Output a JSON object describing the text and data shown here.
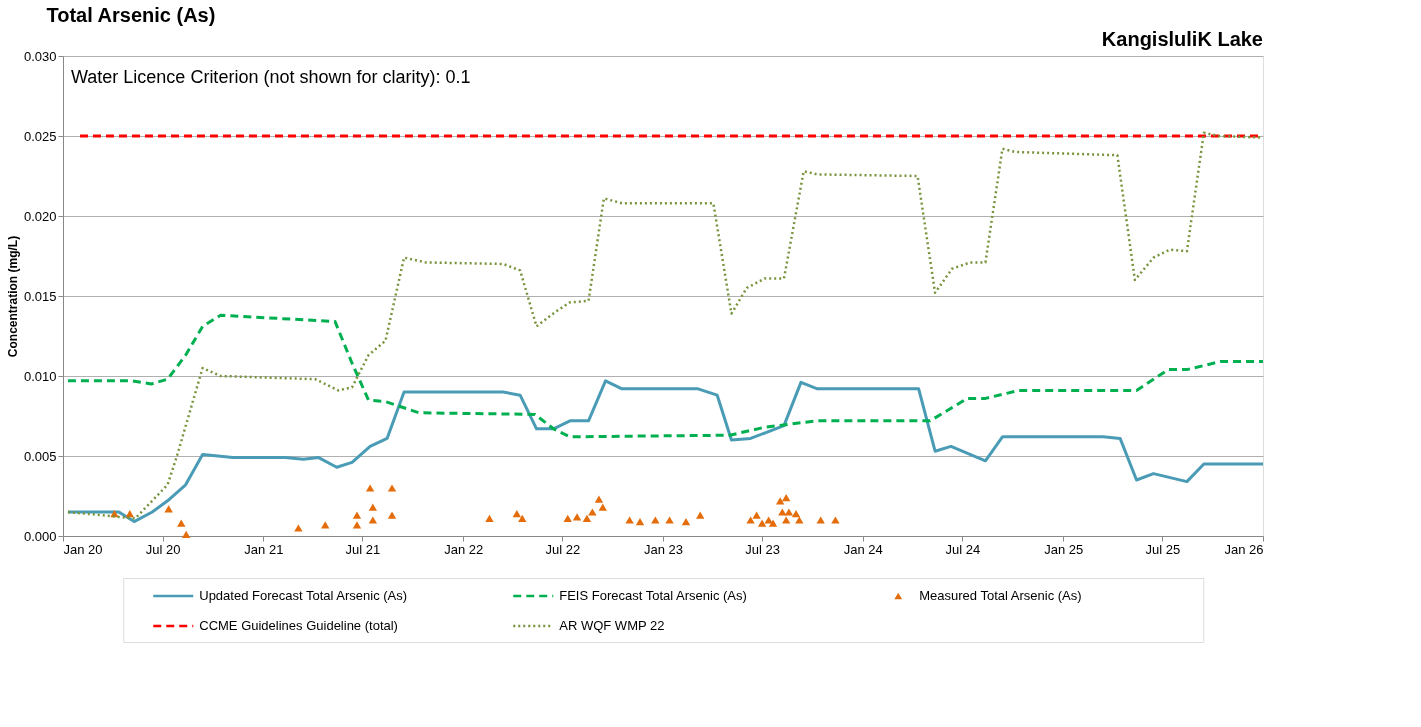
{
  "chart_data": {
    "type": "line",
    "title": "Total Arsenic (As)",
    "ylabel": "Concentration (mg/L)",
    "annotations": [
      "KangisluliK Lake",
      "Water Licence Criterion (not shown for clarity): 0.1"
    ],
    "xlim": [
      "2020-01-01",
      "2026-01-01"
    ],
    "xticks": [
      {
        "value": "2020-01-01",
        "label": "Jan 20"
      },
      {
        "value": "2020-07-01",
        "label": "Jul 20"
      },
      {
        "value": "2021-01-01",
        "label": "Jan 21"
      },
      {
        "value": "2021-07-01",
        "label": "Jul 21"
      },
      {
        "value": "2022-01-01",
        "label": "Jan 22"
      },
      {
        "value": "2022-07-01",
        "label": "Jul 22"
      },
      {
        "value": "2023-01-01",
        "label": "Jan 23"
      },
      {
        "value": "2023-07-01",
        "label": "Jul 23"
      },
      {
        "value": "2024-01-01",
        "label": "Jan 24"
      },
      {
        "value": "2024-07-01",
        "label": "Jul 24"
      },
      {
        "value": "2025-01-01",
        "label": "Jan 25"
      },
      {
        "value": "2025-07-01",
        "label": "Jul 25"
      },
      {
        "value": "2026-01-01",
        "label": "Jan 26"
      }
    ],
    "ylim": [
      0,
      0.03
    ],
    "yticks": [
      {
        "value": 0,
        "label": "0.000"
      },
      {
        "value": 0.005,
        "label": "0.005"
      },
      {
        "value": 0.01,
        "label": "0.010"
      },
      {
        "value": 0.015,
        "label": "0.015"
      },
      {
        "value": 0.02,
        "label": "0.020"
      },
      {
        "value": 0.025,
        "label": "0.025"
      },
      {
        "value": 0.03,
        "label": "0.030"
      }
    ],
    "grid": "y",
    "legend": "bottom",
    "series": [
      {
        "name": "Updated Forecast Total Arsenic (As)",
        "type": "line",
        "line_style": "solid",
        "color": "#4a9bb5",
        "x": [
          "2020-01-10",
          "2020-04-12",
          "2020-05-10",
          "2020-06-12",
          "2020-07-10",
          "2020-08-12",
          "2020-09-12",
          "2020-10-10",
          "2020-11-06",
          "2021-02-10",
          "2021-03-15",
          "2021-04-12",
          "2021-05-15",
          "2021-06-12",
          "2021-07-15",
          "2021-08-15",
          "2021-09-15",
          "2022-01-12",
          "2022-03-15",
          "2022-04-15",
          "2022-05-15",
          "2022-06-15",
          "2022-07-15",
          "2022-08-18",
          "2022-09-18",
          "2022-10-18",
          "2023-03-06",
          "2023-04-10",
          "2023-05-06",
          "2023-06-10",
          "2023-08-10",
          "2023-09-10",
          "2023-10-10",
          "2024-04-12",
          "2024-05-12",
          "2024-06-10",
          "2024-08-12",
          "2024-09-12",
          "2025-03-15",
          "2025-04-15",
          "2025-05-15",
          "2025-06-15",
          "2025-08-15",
          "2025-09-15",
          "2026-01-01"
        ],
        "values": [
          0.0015,
          0.0015,
          0.0009,
          0.0015,
          0.0022,
          0.0032,
          0.0051,
          0.005,
          0.0049,
          0.0049,
          0.0048,
          0.0049,
          0.0043,
          0.0046,
          0.0056,
          0.0061,
          0.009,
          0.009,
          0.009,
          0.0088,
          0.0067,
          0.0067,
          0.0072,
          0.0072,
          0.0097,
          0.0092,
          0.0092,
          0.0088,
          0.006,
          0.0061,
          0.0069,
          0.0096,
          0.0092,
          0.0092,
          0.0053,
          0.0056,
          0.0047,
          0.0062,
          0.0062,
          0.0061,
          0.0035,
          0.0039,
          0.0034,
          0.0045,
          0.0045
        ]
      },
      {
        "name": "FEIS Forecast Total Arsenic (As)",
        "type": "line",
        "line_style": "dashed",
        "color": "#00b050",
        "x": [
          "2020-01-10",
          "2020-05-06",
          "2020-06-10",
          "2020-07-10",
          "2020-08-12",
          "2020-09-12",
          "2020-10-15",
          "2021-05-12",
          "2021-06-12",
          "2021-07-12",
          "2021-08-12",
          "2021-10-12",
          "2022-05-12",
          "2022-06-15",
          "2022-07-15",
          "2023-05-03",
          "2023-07-06",
          "2023-10-10",
          "2024-05-03",
          "2024-07-10",
          "2024-08-12",
          "2024-10-12",
          "2025-05-15",
          "2025-07-12",
          "2025-08-15",
          "2025-10-15",
          "2026-01-01"
        ],
        "values": [
          0.0097,
          0.0097,
          0.0095,
          0.0098,
          0.0113,
          0.0131,
          0.0138,
          0.0134,
          0.0108,
          0.0085,
          0.0084,
          0.0077,
          0.0076,
          0.0067,
          0.0062,
          0.0063,
          0.0068,
          0.0072,
          0.0072,
          0.0086,
          0.0086,
          0.0091,
          0.0091,
          0.0104,
          0.0104,
          0.0109,
          0.0109
        ]
      },
      {
        "name": "Measured Total Arsenic (As)",
        "type": "scatter",
        "marker": "triangle",
        "color": "#e46c0a",
        "x": [
          "2020-04-04",
          "2020-05-02",
          "2020-07-12",
          "2020-08-04",
          "2020-08-13",
          "2021-03-05",
          "2021-03-06",
          "2021-04-24",
          "2021-06-21",
          "2021-06-21",
          "2021-07-15",
          "2021-07-20",
          "2021-07-20",
          "2021-08-20",
          "2021-08-24",
          "2021-08-24",
          "2022-02-18",
          "2022-04-09",
          "2022-04-19",
          "2022-07-11",
          "2022-07-28",
          "2022-08-15",
          "2022-08-25",
          "2022-09-06",
          "2022-09-13",
          "2022-11-01",
          "2022-11-20",
          "2022-12-18",
          "2023-01-13",
          "2023-02-12",
          "2023-03-10",
          "2023-06-10",
          "2023-06-21",
          "2023-07-01",
          "2023-07-13",
          "2023-07-21",
          "2023-08-03",
          "2023-08-07",
          "2023-08-14",
          "2023-08-14",
          "2023-08-19",
          "2023-09-01",
          "2023-09-07",
          "2023-10-16",
          "2023-11-12"
        ],
        "values": [
          0.0014,
          0.0014,
          0.0017,
          0.0008,
          0.0001,
          null,
          0.0005,
          0.0007,
          0.0013,
          0.0007,
          0.003,
          0.0018,
          0.001,
          null,
          0.003,
          0.0013,
          0.0011,
          0.0014,
          0.0011,
          0.0011,
          0.0012,
          0.0011,
          0.0015,
          0.0023,
          0.0018,
          0.001,
          0.0009,
          0.001,
          0.001,
          0.0009,
          0.0013,
          0.001,
          0.0013,
          0.0008,
          0.001,
          0.0008,
          0.0022,
          0.0015,
          0.0024,
          0.001,
          0.0015,
          0.0014,
          0.001,
          0.001,
          0.001
        ]
      },
      {
        "name": "CCME Guidelines Guideline (total)",
        "type": "line",
        "line_style": "dashed",
        "color": "#ff0000",
        "x": [
          "2020-02-01",
          "2026-01-01"
        ],
        "values": [
          0.025,
          0.025
        ]
      },
      {
        "name": "AR WQF WMP 22",
        "type": "line",
        "line_style": "dotted",
        "color": "#77933c",
        "x": [
          "2020-01-10",
          "2020-05-12",
          "2020-07-10",
          "2020-07-28",
          "2020-09-12",
          "2020-10-15",
          "2021-04-06",
          "2021-05-18",
          "2021-06-12",
          "2021-07-12",
          "2021-08-12",
          "2021-09-15",
          "2021-10-24",
          "2022-03-15",
          "2022-04-15",
          "2022-05-15",
          "2022-06-18",
          "2022-07-15",
          "2022-08-18",
          "2022-09-15",
          "2022-10-18",
          "2023-04-03",
          "2023-05-06",
          "2023-06-03",
          "2023-07-06",
          "2023-08-10",
          "2023-09-15",
          "2023-10-10",
          "2024-04-10",
          "2024-05-12",
          "2024-06-12",
          "2024-07-15",
          "2024-08-12",
          "2024-09-12",
          "2024-10-06",
          "2025-04-10",
          "2025-05-12",
          "2025-06-15",
          "2025-07-15",
          "2025-08-15",
          "2025-09-15",
          "2025-10-12",
          "2026-01-01"
        ],
        "values": [
          0.0015,
          0.0011,
          0.0032,
          0.0051,
          0.0105,
          0.01,
          0.0098,
          0.0091,
          0.0093,
          0.0113,
          0.0122,
          0.0174,
          0.0171,
          0.017,
          0.0166,
          0.0131,
          0.014,
          0.0146,
          0.0147,
          0.0211,
          0.0208,
          0.0208,
          0.0139,
          0.0155,
          0.0161,
          0.0161,
          0.0228,
          0.0226,
          0.0225,
          0.0152,
          0.0167,
          0.0171,
          0.0171,
          0.0242,
          0.024,
          0.0238,
          0.016,
          0.0174,
          0.0179,
          0.0178,
          0.0252,
          0.025,
          0.0249
        ]
      }
    ]
  }
}
